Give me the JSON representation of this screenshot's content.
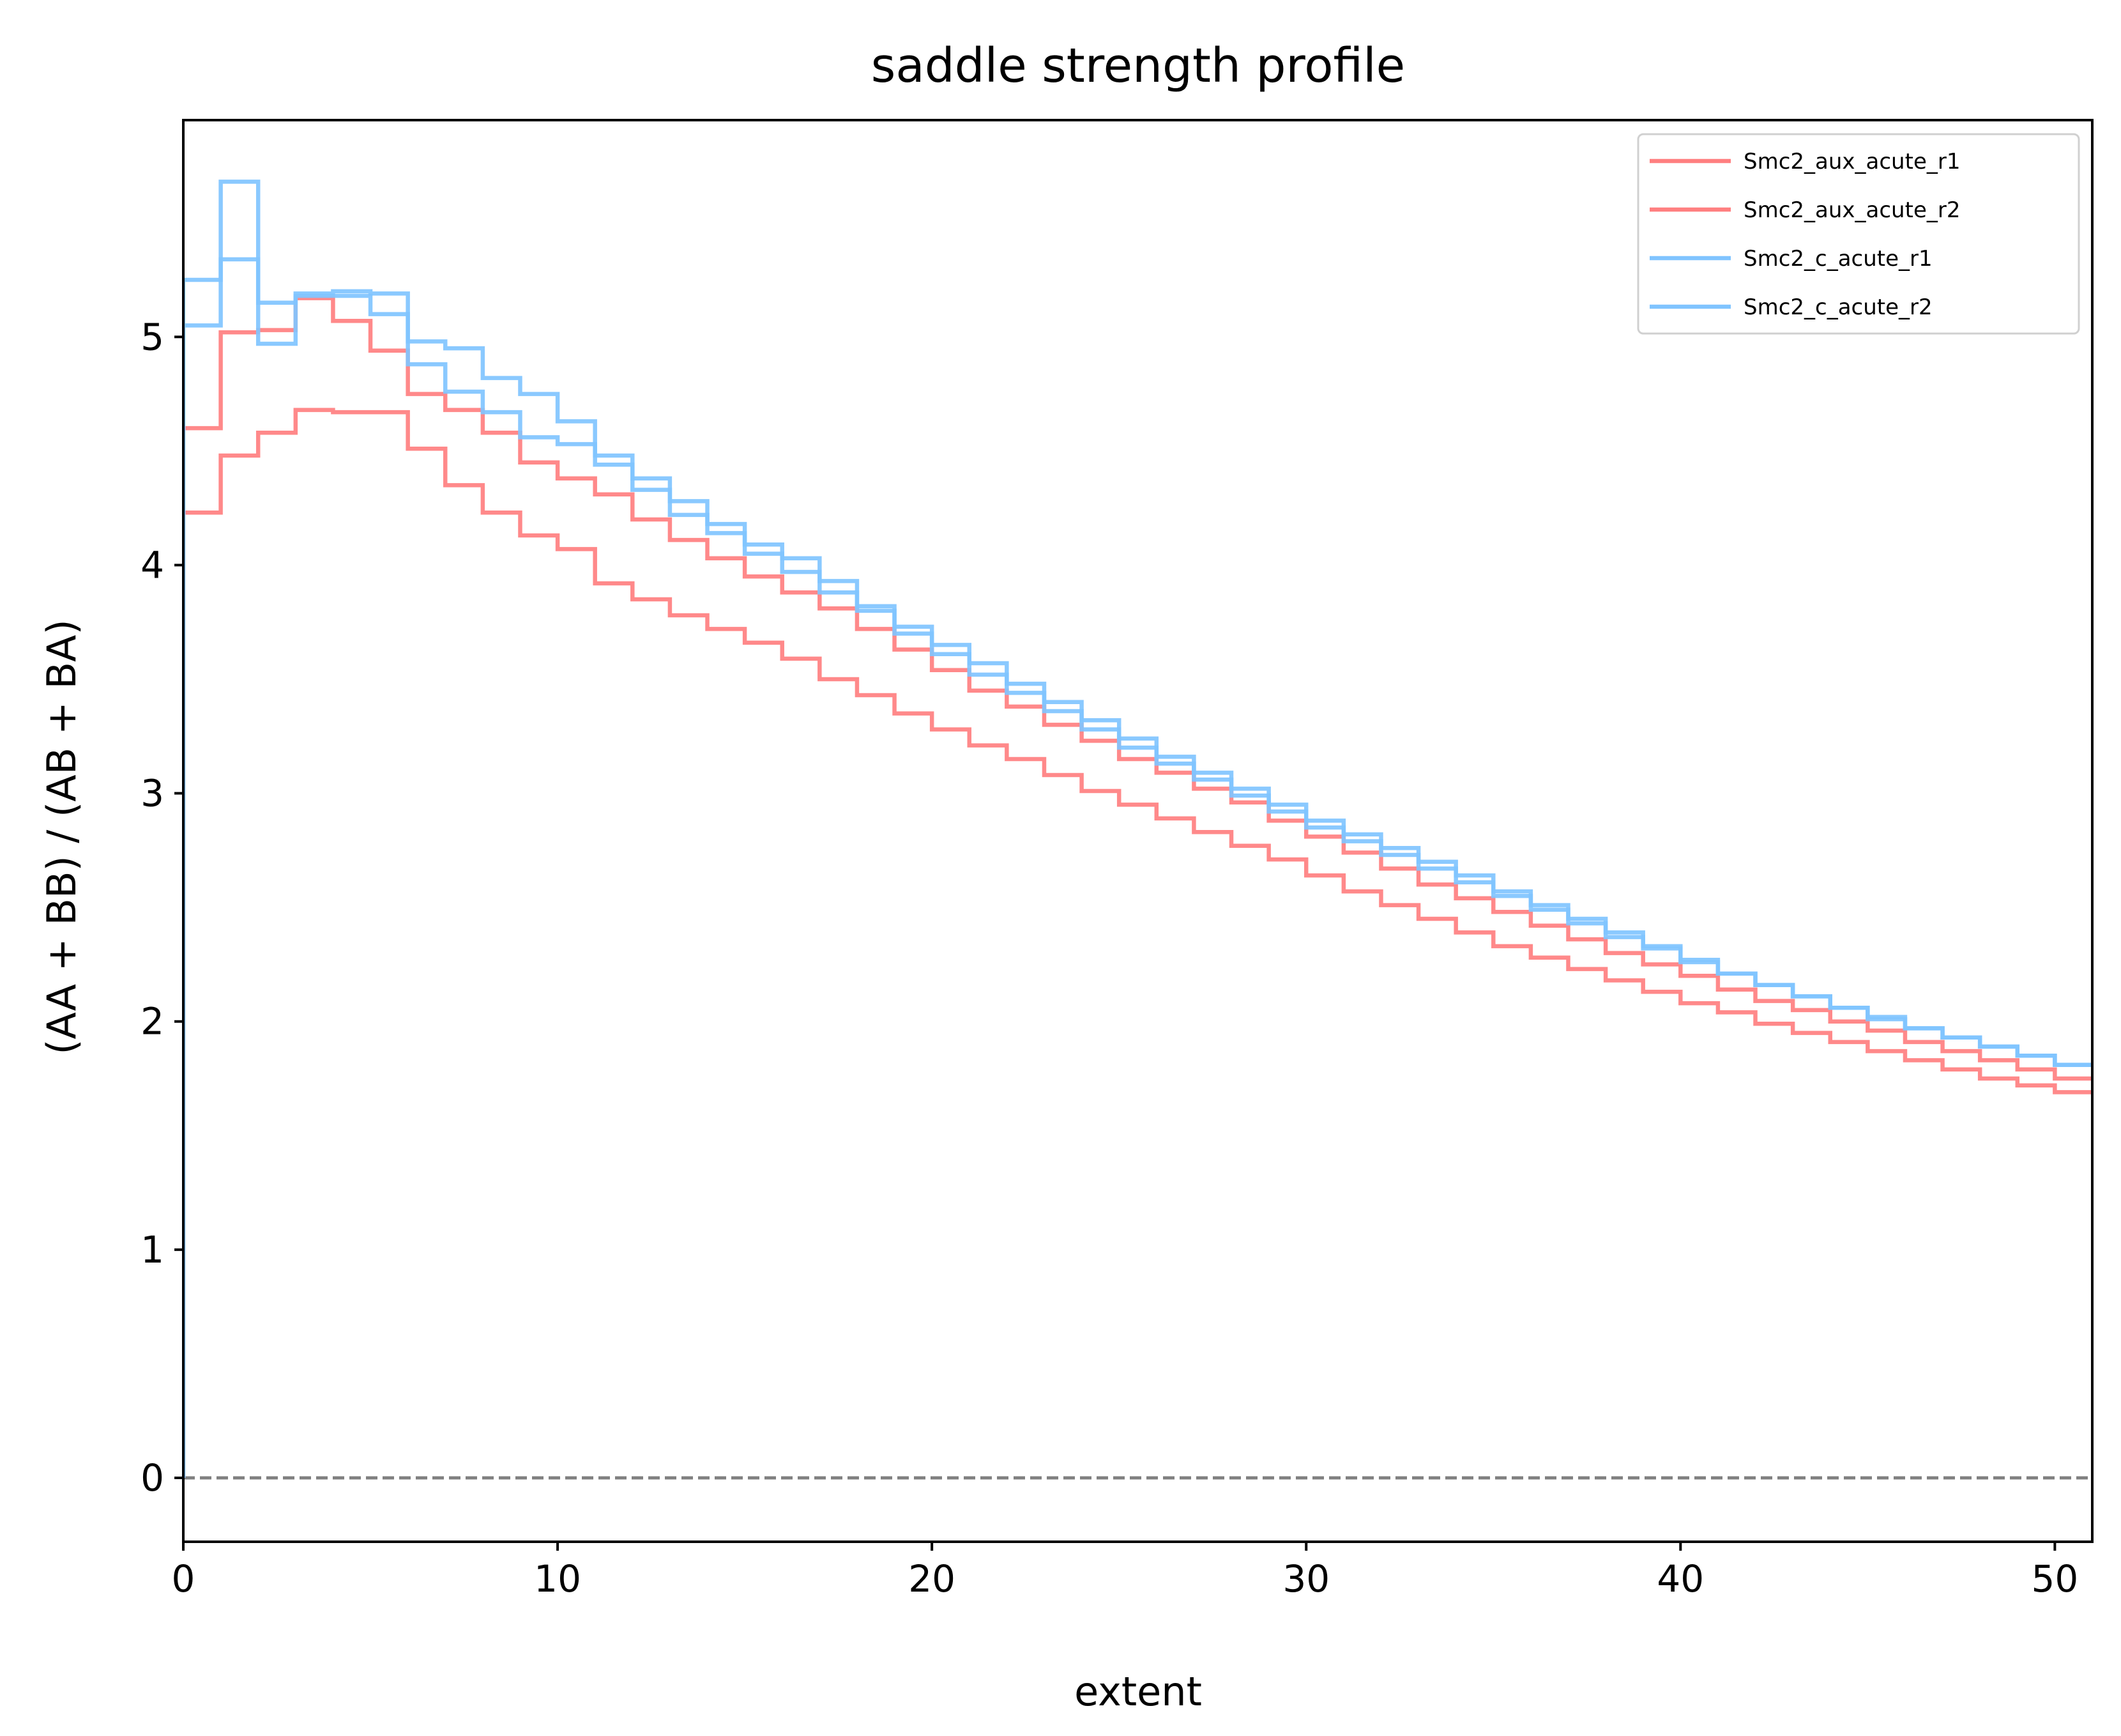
{
  "chart_data": {
    "type": "line",
    "drawstyle": "steps",
    "title": "saddle strength profile",
    "xlabel": "extent",
    "ylabel": "(AA + BB) / (AB + BA)",
    "xlim": [
      0,
      51
    ],
    "ylim": [
      -0.28,
      5.95
    ],
    "xticks": [
      0,
      10,
      20,
      30,
      40,
      50
    ],
    "yticks": [
      0,
      1,
      2,
      3,
      4,
      5
    ],
    "grid": false,
    "legend_position": "top-right",
    "reference_line": {
      "y": 0,
      "style": "dashed",
      "color": "#808080"
    },
    "series": [
      {
        "name": "Smc2_aux_acute_r1",
        "color": "#ff7f80",
        "values": [
          4.6,
          5.02,
          5.03,
          5.17,
          5.07,
          4.94,
          4.75,
          4.68,
          4.58,
          4.45,
          4.38,
          4.31,
          4.2,
          4.11,
          4.03,
          3.95,
          3.88,
          3.81,
          3.72,
          3.63,
          3.54,
          3.45,
          3.38,
          3.3,
          3.23,
          3.15,
          3.09,
          3.02,
          2.96,
          2.88,
          2.81,
          2.74,
          2.67,
          2.6,
          2.54,
          2.48,
          2.42,
          2.36,
          2.3,
          2.25,
          2.2,
          2.14,
          2.09,
          2.05,
          2.0,
          1.96,
          1.91,
          1.87,
          1.83,
          1.79,
          1.75
        ]
      },
      {
        "name": "Smc2_aux_acute_r2",
        "color": "#ff7f80",
        "values": [
          4.23,
          4.48,
          4.58,
          4.68,
          4.67,
          4.67,
          4.51,
          4.35,
          4.23,
          4.13,
          4.07,
          3.92,
          3.85,
          3.78,
          3.72,
          3.66,
          3.59,
          3.5,
          3.43,
          3.35,
          3.28,
          3.21,
          3.15,
          3.08,
          3.01,
          2.95,
          2.89,
          2.83,
          2.77,
          2.71,
          2.64,
          2.57,
          2.51,
          2.45,
          2.39,
          2.33,
          2.28,
          2.23,
          2.18,
          2.13,
          2.08,
          2.04,
          1.99,
          1.95,
          1.91,
          1.87,
          1.83,
          1.79,
          1.75,
          1.72,
          1.69
        ]
      },
      {
        "name": "Smc2_c_acute_r1",
        "color": "#80c4ff",
        "values": [
          5.05,
          5.68,
          4.97,
          5.19,
          5.2,
          5.19,
          4.98,
          4.95,
          4.82,
          4.75,
          4.63,
          4.48,
          4.38,
          4.28,
          4.18,
          4.09,
          4.03,
          3.93,
          3.82,
          3.73,
          3.65,
          3.57,
          3.48,
          3.4,
          3.32,
          3.24,
          3.16,
          3.09,
          3.02,
          2.95,
          2.88,
          2.82,
          2.76,
          2.7,
          2.64,
          2.57,
          2.51,
          2.45,
          2.39,
          2.33,
          2.27,
          2.21,
          2.16,
          2.11,
          2.06,
          2.02,
          1.97,
          1.93,
          1.89,
          1.85,
          1.81
        ]
      },
      {
        "name": "Smc2_c_acute_r2",
        "color": "#80c4ff",
        "values": [
          5.25,
          5.34,
          5.15,
          5.18,
          5.18,
          5.1,
          4.88,
          4.76,
          4.67,
          4.56,
          4.53,
          4.44,
          4.33,
          4.22,
          4.14,
          4.05,
          3.97,
          3.88,
          3.8,
          3.7,
          3.61,
          3.52,
          3.44,
          3.36,
          3.28,
          3.2,
          3.13,
          3.06,
          2.99,
          2.92,
          2.85,
          2.79,
          2.73,
          2.67,
          2.61,
          2.55,
          2.49,
          2.43,
          2.37,
          2.32,
          2.26,
          2.21,
          2.16,
          2.11,
          2.06,
          2.01,
          1.97,
          1.93,
          1.89,
          1.85,
          1.81
        ]
      }
    ]
  }
}
